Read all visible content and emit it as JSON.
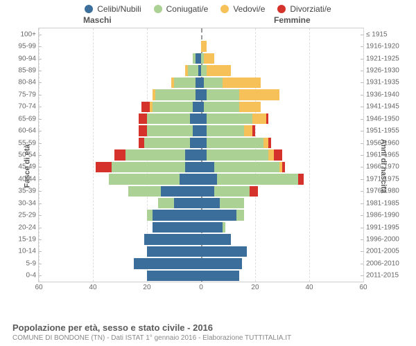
{
  "legend": [
    {
      "label": "Celibi/Nubili",
      "color": "#3b6e9a"
    },
    {
      "label": "Coniugati/e",
      "color": "#abd194"
    },
    {
      "label": "Vedovi/e",
      "color": "#f7c15a"
    },
    {
      "label": "Divorziati/e",
      "color": "#d4322b"
    }
  ],
  "header_male": "Maschi",
  "header_female": "Femmine",
  "ylabel_left": "Fasce di età",
  "ylabel_right": "Anni di nascita",
  "xdomain": [
    -60,
    60
  ],
  "xticks": [
    60,
    40,
    20,
    0,
    20,
    40,
    60
  ],
  "xtick_positions": [
    -60,
    -40,
    -20,
    0,
    20,
    40,
    60
  ],
  "age_labels": [
    "0-4",
    "5-9",
    "10-14",
    "15-19",
    "20-24",
    "25-29",
    "30-34",
    "35-39",
    "40-44",
    "45-49",
    "50-54",
    "55-59",
    "60-64",
    "65-69",
    "70-74",
    "75-79",
    "80-84",
    "85-89",
    "90-94",
    "95-99",
    "100+"
  ],
  "birth_labels": [
    "2011-2015",
    "2006-2010",
    "2001-2005",
    "1996-2000",
    "1991-1995",
    "1986-1990",
    "1981-1985",
    "1976-1980",
    "1971-1975",
    "1966-1970",
    "1961-1965",
    "1956-1960",
    "1951-1955",
    "1946-1950",
    "1941-1945",
    "1936-1940",
    "1931-1935",
    "1926-1930",
    "1921-1925",
    "1916-1920",
    "≤ 1915"
  ],
  "colors": {
    "celibi": "#3b6e9a",
    "coniugati": "#abd194",
    "vedovi": "#f7c15a",
    "divorziati": "#d4322b",
    "grid": "#e0e0e0",
    "center": "#999999",
    "bg": "#ffffff",
    "text": "#555555"
  },
  "bar_gap": 1,
  "rows": [
    {
      "male": {
        "c": 20,
        "m": 0,
        "w": 0,
        "d": 0
      },
      "female": {
        "c": 14,
        "m": 0,
        "w": 0,
        "d": 0
      }
    },
    {
      "male": {
        "c": 25,
        "m": 0,
        "w": 0,
        "d": 0
      },
      "female": {
        "c": 15,
        "m": 0,
        "w": 0,
        "d": 0
      }
    },
    {
      "male": {
        "c": 20,
        "m": 0,
        "w": 0,
        "d": 0
      },
      "female": {
        "c": 17,
        "m": 0,
        "w": 0,
        "d": 0
      }
    },
    {
      "male": {
        "c": 21,
        "m": 0,
        "w": 0,
        "d": 0
      },
      "female": {
        "c": 11,
        "m": 0,
        "w": 0,
        "d": 0
      }
    },
    {
      "male": {
        "c": 18,
        "m": 0,
        "w": 0,
        "d": 0
      },
      "female": {
        "c": 8,
        "m": 1,
        "w": 0,
        "d": 0
      }
    },
    {
      "male": {
        "c": 18,
        "m": 2,
        "w": 0,
        "d": 0
      },
      "female": {
        "c": 13,
        "m": 3,
        "w": 0,
        "d": 0
      }
    },
    {
      "male": {
        "c": 10,
        "m": 6,
        "w": 0,
        "d": 0
      },
      "female": {
        "c": 7,
        "m": 9,
        "w": 0,
        "d": 0
      }
    },
    {
      "male": {
        "c": 15,
        "m": 12,
        "w": 0,
        "d": 0
      },
      "female": {
        "c": 5,
        "m": 13,
        "w": 0,
        "d": 3
      }
    },
    {
      "male": {
        "c": 8,
        "m": 26,
        "w": 0,
        "d": 0
      },
      "female": {
        "c": 6,
        "m": 30,
        "w": 0,
        "d": 2
      }
    },
    {
      "male": {
        "c": 6,
        "m": 27,
        "w": 0,
        "d": 6
      },
      "female": {
        "c": 5,
        "m": 24,
        "w": 1,
        "d": 1
      }
    },
    {
      "male": {
        "c": 6,
        "m": 22,
        "w": 0,
        "d": 4
      },
      "female": {
        "c": 2,
        "m": 23,
        "w": 2,
        "d": 3
      }
    },
    {
      "male": {
        "c": 4,
        "m": 17,
        "w": 0,
        "d": 2
      },
      "female": {
        "c": 2,
        "m": 21,
        "w": 2,
        "d": 1
      }
    },
    {
      "male": {
        "c": 3,
        "m": 17,
        "w": 0,
        "d": 3
      },
      "female": {
        "c": 2,
        "m": 14,
        "w": 3,
        "d": 1
      }
    },
    {
      "male": {
        "c": 4,
        "m": 16,
        "w": 0,
        "d": 3
      },
      "female": {
        "c": 2,
        "m": 17,
        "w": 5,
        "d": 1
      }
    },
    {
      "male": {
        "c": 3,
        "m": 15,
        "w": 1,
        "d": 3
      },
      "female": {
        "c": 1,
        "m": 13,
        "w": 8,
        "d": 0
      }
    },
    {
      "male": {
        "c": 2,
        "m": 15,
        "w": 1,
        "d": 0
      },
      "female": {
        "c": 2,
        "m": 12,
        "w": 15,
        "d": 0
      }
    },
    {
      "male": {
        "c": 2,
        "m": 8,
        "w": 1,
        "d": 0
      },
      "female": {
        "c": 1,
        "m": 7,
        "w": 14,
        "d": 0
      }
    },
    {
      "male": {
        "c": 1,
        "m": 4,
        "w": 1,
        "d": 0
      },
      "female": {
        "c": 0,
        "m": 2,
        "w": 9,
        "d": 0
      }
    },
    {
      "male": {
        "c": 2,
        "m": 1,
        "w": 0,
        "d": 0
      },
      "female": {
        "c": 0,
        "m": 1,
        "w": 4,
        "d": 0
      }
    },
    {
      "male": {
        "c": 0,
        "m": 0,
        "w": 0,
        "d": 0
      },
      "female": {
        "c": 0,
        "m": 0,
        "w": 2,
        "d": 0
      }
    },
    {
      "male": {
        "c": 0,
        "m": 0,
        "w": 0,
        "d": 0
      },
      "female": {
        "c": 0,
        "m": 0,
        "w": 0,
        "d": 0
      }
    }
  ],
  "title": "Popolazione per età, sesso e stato civile - 2016",
  "subtitle": "COMUNE DI BONDONE (TN) - Dati ISTAT 1° gennaio 2016 - Elaborazione TUTTITALIA.IT"
}
